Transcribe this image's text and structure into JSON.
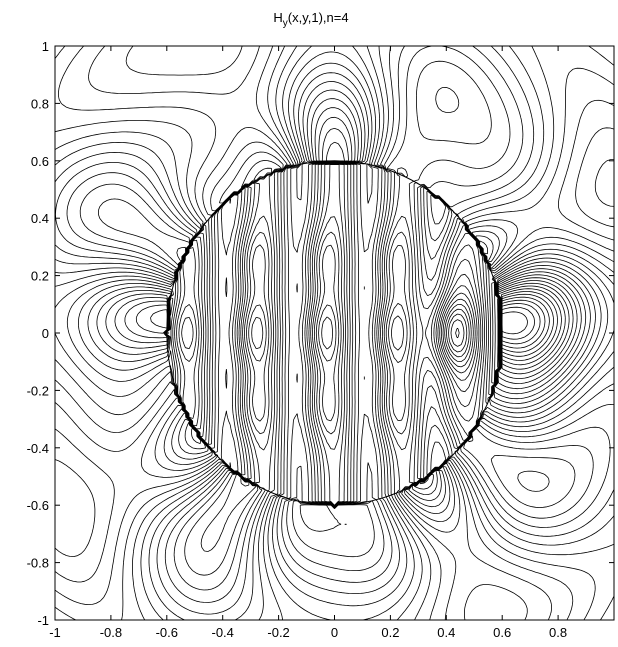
{
  "chart_data": {
    "type": "contour",
    "title": {
      "base": "H",
      "subscript": "y",
      "rest": "(x,y,1),n=4"
    },
    "xlabel": "",
    "ylabel": "",
    "xlim": [
      -1,
      1
    ],
    "ylim": [
      -1,
      1
    ],
    "xticks": [
      -1,
      -0.8,
      -0.6,
      -0.4,
      -0.2,
      0,
      0.2,
      0.4,
      0.6,
      0.8
    ],
    "xtick_labels": [
      "-1",
      "-0.8",
      "-0.6",
      "-0.4",
      "-0.2",
      "0",
      "0.2",
      "0.4",
      "0.6",
      "0.8"
    ],
    "yticks": [
      1,
      0.8,
      0.6,
      0.4,
      0.2,
      0,
      -0.2,
      -0.4,
      -0.6,
      -0.8,
      -1
    ],
    "ytick_labels": [
      "1",
      "0.8",
      "0.6",
      "0.4",
      "0.2",
      "0",
      "-0.2",
      "-0.4",
      "-0.6",
      "-0.8",
      "-1"
    ],
    "grid": false,
    "line_color": "#000000",
    "scatterer": {
      "shape": "circle",
      "center": [
        0,
        0
      ],
      "radius": 0.6
    },
    "field_inside": {
      "description_units": "x-lobes along x within circle",
      "lobe_centers_x": [
        -0.55,
        -0.3,
        -0.05,
        0.2,
        0.42
      ],
      "lobe_centers_y": [
        0.25,
        0,
        -0.25
      ]
    },
    "field_outside": {
      "petal_angles_deg": [
        0,
        32,
        65,
        98,
        130,
        160,
        180,
        200,
        230,
        262,
        295,
        328
      ],
      "main_lobe_x": 0.6
    }
  }
}
